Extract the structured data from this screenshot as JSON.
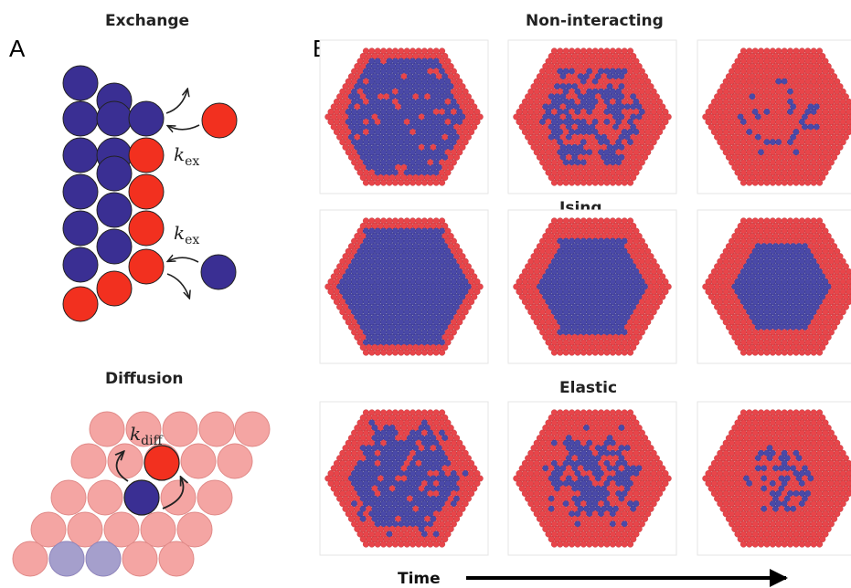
{
  "panel_a": {
    "letter": "A",
    "exchange_title": "Exchange",
    "rate_exchange": "k",
    "rate_exchange_sub": "ex",
    "diffusion_title": "Diffusion",
    "rate_diffusion": "k",
    "rate_diffusion_sub": "diff"
  },
  "panel_b": {
    "letter": "B",
    "row_titles": [
      "Non-interacting",
      "Ising",
      "Elastic"
    ],
    "time_label": "Time"
  },
  "colors": {
    "red": "#f2301f",
    "blue": "#3a2f93",
    "light_red": "#f4a5a3",
    "light_blue": "#a59fcc",
    "particle_red": "#e8454a",
    "particle_blue": "#4a49a8"
  }
}
